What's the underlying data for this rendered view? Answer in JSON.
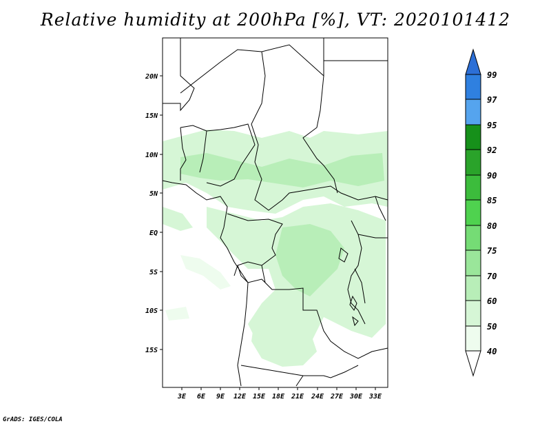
{
  "title": "Relative humidity at 200hPa [%], VT: 2020101412",
  "credit": "GrADS: IGES/COLA",
  "map": {
    "region": "Central Africa",
    "lat_labels": [
      "20N",
      "15N",
      "10N",
      "5N",
      "EQ",
      "5S",
      "10S",
      "15S"
    ],
    "lon_labels": [
      "3E",
      "6E",
      "9E",
      "12E",
      "15E",
      "18E",
      "21E",
      "24E",
      "27E",
      "30E",
      "33E"
    ]
  },
  "colorbar": {
    "labels": [
      "99",
      "97",
      "95",
      "92",
      "90",
      "85",
      "80",
      "75",
      "70",
      "60",
      "50",
      "40"
    ],
    "colors": {
      "c99": "#2c6fd6",
      "c97": "#2f80e0",
      "c95": "#55a4ee",
      "c92": "#16901a",
      "c90": "#2aa32a",
      "c85": "#3cbc3c",
      "c80": "#4fd24f",
      "c75": "#75dc75",
      "c70": "#9ae69a",
      "c60": "#b8eeb8",
      "c50": "#d6f6d6",
      "c40": "#eefcee"
    }
  }
}
